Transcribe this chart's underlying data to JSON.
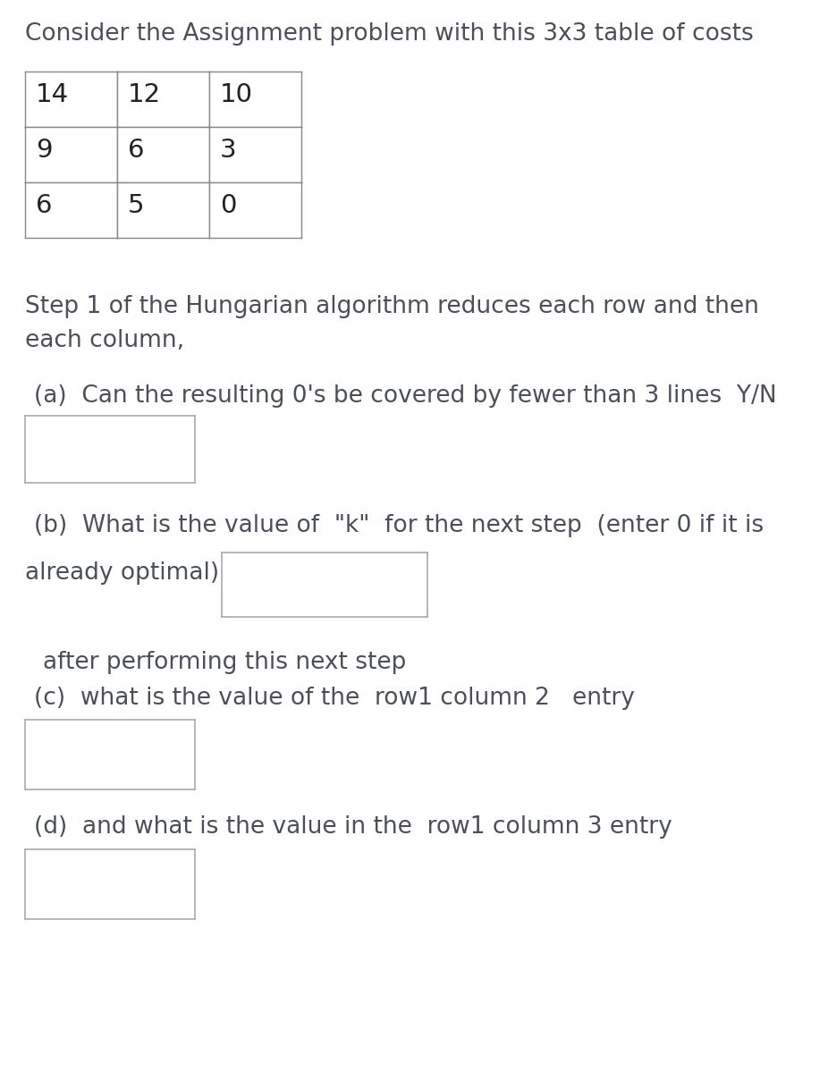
{
  "title": "Consider the Assignment problem with this 3x3 table of costs",
  "table_data": [
    [
      "14",
      "12",
      "10"
    ],
    [
      "9",
      "6",
      "3"
    ],
    [
      "6",
      "5",
      "0"
    ]
  ],
  "step1_text1": "Step 1 of the Hungarian algorithm reduces each row and then",
  "step1_text2": "each column,",
  "part_a_text": "(a)  Can the resulting 0's be covered by fewer than 3 lines  Y/N",
  "part_b_line1": "(b)  What is the value of  \"k\"  for the next step  (enter 0 if it is",
  "part_b_line2": "already optimal)",
  "after_text": "after performing this next step",
  "part_c_text": "(c)  what is the value of the  row1 column 2   entry",
  "part_d_text": "(d)  and what is the value in the  row1 column 3 entry",
  "bg_color": "#ffffff",
  "text_color": "#4a4f5a",
  "title_fontsize": 19,
  "body_fontsize": 19,
  "table_fontsize": 21,
  "fig_w": 9.26,
  "fig_h": 12.08,
  "dpi": 100
}
